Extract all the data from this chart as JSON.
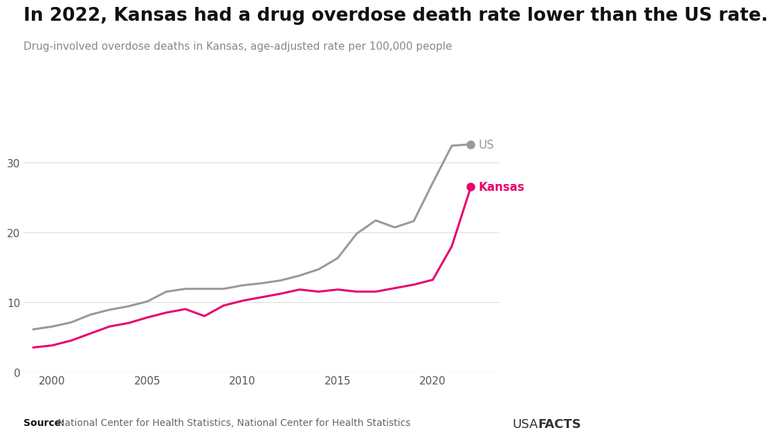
{
  "title": "In 2022, Kansas had a drug overdose death rate lower than the US rate.",
  "subtitle": "Drug-involved overdose deaths in Kansas, age-adjusted rate per 100,000 people",
  "source_label": "Source: ",
  "source_text": "National Center for Health Statistics, National Center for Health Statistics",
  "years": [
    1999,
    2000,
    2001,
    2002,
    2003,
    2004,
    2005,
    2006,
    2007,
    2008,
    2009,
    2010,
    2011,
    2012,
    2013,
    2014,
    2015,
    2016,
    2017,
    2018,
    2019,
    2020,
    2021,
    2022
  ],
  "us_values": [
    6.1,
    6.5,
    7.1,
    8.2,
    8.9,
    9.4,
    10.1,
    11.5,
    11.9,
    11.9,
    11.9,
    12.4,
    12.7,
    13.1,
    13.8,
    14.7,
    16.3,
    19.8,
    21.7,
    20.7,
    21.6,
    27.1,
    32.4,
    32.6
  ],
  "kansas_values": [
    3.5,
    3.8,
    4.5,
    5.5,
    6.5,
    7.0,
    7.8,
    8.5,
    9.0,
    8.0,
    9.5,
    10.2,
    10.7,
    11.2,
    11.8,
    11.5,
    11.8,
    11.5,
    11.5,
    12.0,
    12.5,
    13.2,
    18.0,
    26.5
  ],
  "us_color": "#999999",
  "kansas_color": "#e8006e",
  "line_width": 2.2,
  "ylim": [
    0,
    36
  ],
  "yticks": [
    0,
    10,
    20,
    30
  ],
  "xlim": [
    1998.5,
    2023.5
  ],
  "xticks": [
    2000,
    2005,
    2010,
    2015,
    2020
  ],
  "background_color": "#ffffff",
  "grid_color": "#dddddd",
  "title_fontsize": 19,
  "subtitle_fontsize": 11,
  "tick_fontsize": 11,
  "label_fontsize": 12,
  "source_fontsize": 10,
  "usafacts_fontsize": 13
}
